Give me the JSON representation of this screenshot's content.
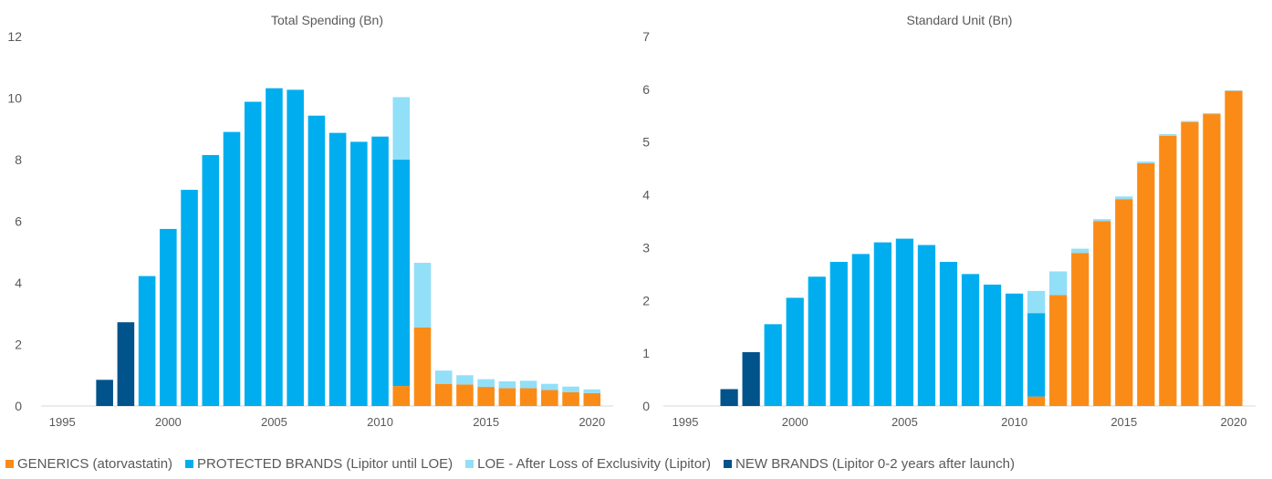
{
  "chart_data": [
    {
      "type": "bar",
      "stacked": true,
      "title": "Total Spending  (Bn)",
      "xlim": [
        1994,
        2021
      ],
      "ylim": [
        0,
        12
      ],
      "yticks": [
        "0",
        "2",
        "4",
        "6",
        "8",
        "10",
        "12"
      ],
      "xticks": [
        "1995",
        "2000",
        "2005",
        "2010",
        "2015",
        "2020"
      ],
      "x": [
        1997,
        1998,
        1999,
        2000,
        2001,
        2002,
        2003,
        2004,
        2005,
        2006,
        2007,
        2008,
        2009,
        2010,
        2011,
        2012,
        2013,
        2014,
        2015,
        2016,
        2017,
        2018,
        2019,
        2020
      ],
      "series": [
        {
          "name": "GENERICS (atorvastatin)",
          "color": "#fb8b17",
          "values": [
            0,
            0,
            0,
            0,
            0,
            0,
            0,
            0,
            0,
            0,
            0,
            0,
            0,
            0,
            0.65,
            2.55,
            0.72,
            0.7,
            0.62,
            0.58,
            0.58,
            0.52,
            0.45,
            0.42
          ]
        },
        {
          "name": "PROTECTED BRANDS (Lipitor until LOE)",
          "color": "#00aeef",
          "values": [
            0,
            0,
            4.22,
            5.75,
            7.02,
            8.15,
            8.9,
            9.88,
            10.32,
            10.27,
            9.43,
            8.87,
            8.58,
            8.75,
            7.35,
            0,
            0,
            0,
            0,
            0,
            0,
            0,
            0,
            0
          ]
        },
        {
          "name": "LOE - After Loss of Exclusivity (Lipitor)",
          "color": "#92dff8",
          "values": [
            0,
            0,
            0,
            0,
            0,
            0,
            0,
            0,
            0,
            0,
            0,
            0,
            0,
            0,
            2.03,
            2.1,
            0.43,
            0.3,
            0.25,
            0.22,
            0.24,
            0.2,
            0.18,
            0.12
          ]
        },
        {
          "name": "NEW BRANDS (Lipitor 0-2 years after launch)",
          "color": "#00538b",
          "values": [
            0.85,
            2.72,
            0,
            0,
            0,
            0,
            0,
            0,
            0,
            0,
            0,
            0,
            0,
            0,
            0,
            0,
            0,
            0,
            0,
            0,
            0,
            0,
            0,
            0
          ]
        }
      ]
    },
    {
      "type": "bar",
      "stacked": true,
      "title": "Standard Unit  (Bn)",
      "xlim": [
        1994,
        2021
      ],
      "ylim": [
        0,
        7
      ],
      "yticks": [
        "0",
        "1",
        "2",
        "3",
        "4",
        "5",
        "6",
        "7"
      ],
      "xticks": [
        "1995",
        "2000",
        "2005",
        "2010",
        "2015",
        "2020"
      ],
      "x": [
        1997,
        1998,
        1999,
        2000,
        2001,
        2002,
        2003,
        2004,
        2005,
        2006,
        2007,
        2008,
        2009,
        2010,
        2011,
        2012,
        2013,
        2014,
        2015,
        2016,
        2017,
        2018,
        2019,
        2020
      ],
      "series": [
        {
          "name": "GENERICS (atorvastatin)",
          "color": "#fb8b17",
          "values": [
            0,
            0,
            0,
            0,
            0,
            0,
            0,
            0,
            0,
            0,
            0,
            0,
            0,
            0,
            0.18,
            2.1,
            2.9,
            3.5,
            3.92,
            4.6,
            5.12,
            5.38,
            5.53,
            5.97
          ]
        },
        {
          "name": "PROTECTED BRANDS (Lipitor until LOE)",
          "color": "#00aeef",
          "values": [
            0,
            0,
            1.55,
            2.05,
            2.45,
            2.73,
            2.88,
            3.1,
            3.17,
            3.05,
            2.73,
            2.5,
            2.3,
            2.13,
            1.58,
            0,
            0,
            0,
            0,
            0,
            0,
            0,
            0,
            0
          ]
        },
        {
          "name": "LOE - After Loss of Exclusivity (Lipitor)",
          "color": "#92dff8",
          "values": [
            0,
            0,
            0,
            0,
            0,
            0,
            0,
            0,
            0,
            0,
            0,
            0,
            0,
            0,
            0.42,
            0.45,
            0.08,
            0.04,
            0.05,
            0.03,
            0.03,
            0.02,
            0.02,
            0.01
          ]
        },
        {
          "name": "NEW BRANDS (Lipitor 0-2 years after launch)",
          "color": "#00538b",
          "values": [
            0.32,
            1.02,
            0,
            0,
            0,
            0,
            0,
            0,
            0,
            0,
            0,
            0,
            0,
            0,
            0,
            0,
            0,
            0,
            0,
            0,
            0,
            0,
            0,
            0
          ]
        }
      ]
    }
  ],
  "legend": [
    {
      "label": "GENERICS (atorvastatin)",
      "color": "#fb8b17"
    },
    {
      "label": "PROTECTED BRANDS (Lipitor until LOE)",
      "color": "#00aeef"
    },
    {
      "label": "LOE - After Loss of Exclusivity (Lipitor)",
      "color": "#92dff8"
    },
    {
      "label": "NEW BRANDS (Lipitor 0-2 years after launch)",
      "color": "#00538b"
    }
  ]
}
